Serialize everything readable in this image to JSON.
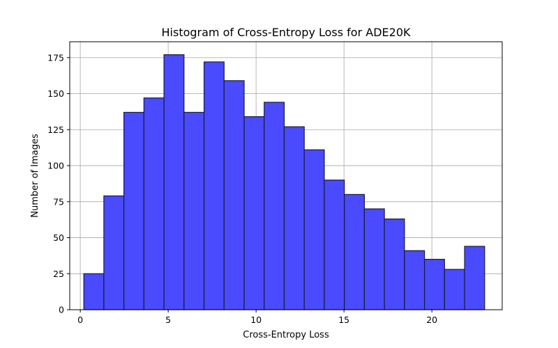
{
  "chart_data": {
    "type": "bar",
    "title": "Histogram of Cross-Entropy Loss for ADE20K",
    "xlabel": "Cross-Entropy Loss",
    "ylabel": "Number of Images",
    "xlim": [
      -0.6,
      24
    ],
    "ylim": [
      0,
      186
    ],
    "grid": true,
    "bar_color": "#4a4aff",
    "edge_color": "#1a1a40",
    "xticks": [
      0,
      5,
      10,
      15,
      20
    ],
    "yticks": [
      0,
      25,
      50,
      75,
      100,
      125,
      150,
      175
    ],
    "bin_edges": [
      0.2,
      1.34,
      2.48,
      3.62,
      4.76,
      5.9,
      7.04,
      8.18,
      9.32,
      10.46,
      11.6,
      12.74,
      13.88,
      15.02,
      16.16,
      17.3,
      18.44,
      19.58,
      20.72,
      21.86,
      23.0
    ],
    "values": [
      25,
      79,
      137,
      147,
      177,
      137,
      172,
      159,
      134,
      144,
      127,
      111,
      90,
      80,
      70,
      63,
      41,
      35,
      28,
      44
    ]
  }
}
